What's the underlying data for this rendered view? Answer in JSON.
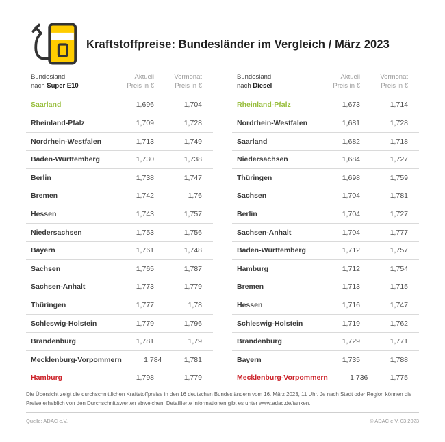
{
  "header": {
    "title": "Kraftstoffpreise: Bundesländer im Vergleich / März 2023",
    "icon": "fuel-pump-icon"
  },
  "columns": {
    "bundesland": "Bundesland",
    "nach_prefix": "nach ",
    "aktuell": "Aktuell",
    "vormonat": "Vormonat",
    "preis": "Preis in €"
  },
  "tables": [
    {
      "fuel": "Super E10",
      "rows": [
        {
          "name": "Saarland",
          "aktuell": "1,696",
          "vormonat": "1,704",
          "highlight": "green"
        },
        {
          "name": "Rheinland-Pfalz",
          "aktuell": "1,709",
          "vormonat": "1,728",
          "highlight": null
        },
        {
          "name": "Nordrhein-Westfalen",
          "aktuell": "1,713",
          "vormonat": "1,749",
          "highlight": null
        },
        {
          "name": "Baden-Württemberg",
          "aktuell": "1,730",
          "vormonat": "1,738",
          "highlight": null
        },
        {
          "name": "Berlin",
          "aktuell": "1,738",
          "vormonat": "1,747",
          "highlight": null
        },
        {
          "name": "Bremen",
          "aktuell": "1,742",
          "vormonat": "1,76",
          "highlight": null
        },
        {
          "name": "Hessen",
          "aktuell": "1,743",
          "vormonat": "1,757",
          "highlight": null
        },
        {
          "name": "Niedersachsen",
          "aktuell": "1,753",
          "vormonat": "1,756",
          "highlight": null
        },
        {
          "name": "Bayern",
          "aktuell": "1,761",
          "vormonat": "1,748",
          "highlight": null
        },
        {
          "name": "Sachsen",
          "aktuell": "1,765",
          "vormonat": "1,787",
          "highlight": null
        },
        {
          "name": "Sachsen-Anhalt",
          "aktuell": "1,773",
          "vormonat": "1,779",
          "highlight": null
        },
        {
          "name": "Thüringen",
          "aktuell": "1,777",
          "vormonat": "1,78",
          "highlight": null
        },
        {
          "name": "Schleswig-Holstein",
          "aktuell": "1,779",
          "vormonat": "1,796",
          "highlight": null
        },
        {
          "name": "Brandenburg",
          "aktuell": "1,781",
          "vormonat": "1,79",
          "highlight": null
        },
        {
          "name": "Mecklenburg-Vorpommern",
          "aktuell": "1,784",
          "vormonat": "1,781",
          "highlight": null
        },
        {
          "name": "Hamburg",
          "aktuell": "1,798",
          "vormonat": "1,779",
          "highlight": "red"
        }
      ]
    },
    {
      "fuel": "Diesel",
      "rows": [
        {
          "name": "Rheinland-Pfalz",
          "aktuell": "1,673",
          "vormonat": "1,714",
          "highlight": "green"
        },
        {
          "name": "Nordrhein-Westfalen",
          "aktuell": "1,681",
          "vormonat": "1,728",
          "highlight": null
        },
        {
          "name": "Saarland",
          "aktuell": "1,682",
          "vormonat": "1,718",
          "highlight": null
        },
        {
          "name": "Niedersachsen",
          "aktuell": "1,684",
          "vormonat": "1,727",
          "highlight": null
        },
        {
          "name": "Thüringen",
          "aktuell": "1,698",
          "vormonat": "1,759",
          "highlight": null
        },
        {
          "name": "Sachsen",
          "aktuell": "1,704",
          "vormonat": "1,781",
          "highlight": null
        },
        {
          "name": "Berlin",
          "aktuell": "1,704",
          "vormonat": "1,727",
          "highlight": null
        },
        {
          "name": "Sachsen-Anhalt",
          "aktuell": "1,704",
          "vormonat": "1,777",
          "highlight": null
        },
        {
          "name": "Baden-Württemberg",
          "aktuell": "1,712",
          "vormonat": "1,757",
          "highlight": null
        },
        {
          "name": "Hamburg",
          "aktuell": "1,712",
          "vormonat": "1,754",
          "highlight": null
        },
        {
          "name": "Bremen",
          "aktuell": "1,713",
          "vormonat": "1,715",
          "highlight": null
        },
        {
          "name": "Hessen",
          "aktuell": "1,716",
          "vormonat": "1,747",
          "highlight": null
        },
        {
          "name": "Schleswig-Holstein",
          "aktuell": "1,719",
          "vormonat": "1,762",
          "highlight": null
        },
        {
          "name": "Brandenburg",
          "aktuell": "1,729",
          "vormonat": "1,771",
          "highlight": null
        },
        {
          "name": "Bayern",
          "aktuell": "1,735",
          "vormonat": "1,788",
          "highlight": null
        },
        {
          "name": "Mecklenburg-Vorpommern",
          "aktuell": "1,736",
          "vormonat": "1,775",
          "highlight": "red"
        }
      ]
    }
  ],
  "footnote": {
    "text": "Die Übersicht zeigt die durchschnittlichen Kraftstoffpreise in den 16 deutschen Bundesländern vom 16. März 2023, 11 Uhr. Je nach Stadt oder Region können die Preise erheblich von den Durchschnittswerten abweichen. Detaillierte Informationen gibt es unter www.adac.de/tanken."
  },
  "footer": {
    "source": "Quelle: ADAC e.V.",
    "copyright": "© ADAC e.V. 03.2023"
  },
  "colors": {
    "accent_yellow": "#FFCC00",
    "cheapest_green": "#98BE3C",
    "most_expensive_red": "#CC2229"
  },
  "chart_data": [
    {
      "type": "table",
      "title": "Kraftstoffpreise Bundesländer im Vergleich März 2023 – Super E10",
      "columns": [
        "Bundesland nach Super E10",
        "Aktuell Preis in €",
        "Vormonat Preis in €"
      ],
      "rows": [
        [
          "Saarland",
          1.696,
          1.704
        ],
        [
          "Rheinland-Pfalz",
          1.709,
          1.728
        ],
        [
          "Nordrhein-Westfalen",
          1.713,
          1.749
        ],
        [
          "Baden-Württemberg",
          1.73,
          1.738
        ],
        [
          "Berlin",
          1.738,
          1.747
        ],
        [
          "Bremen",
          1.742,
          1.76
        ],
        [
          "Hessen",
          1.743,
          1.757
        ],
        [
          "Niedersachsen",
          1.753,
          1.756
        ],
        [
          "Bayern",
          1.761,
          1.748
        ],
        [
          "Sachsen",
          1.765,
          1.787
        ],
        [
          "Sachsen-Anhalt",
          1.773,
          1.779
        ],
        [
          "Thüringen",
          1.777,
          1.78
        ],
        [
          "Schleswig-Holstein",
          1.779,
          1.796
        ],
        [
          "Brandenburg",
          1.781,
          1.79
        ],
        [
          "Mecklenburg-Vorpommern",
          1.784,
          1.781
        ],
        [
          "Hamburg",
          1.798,
          1.779
        ]
      ]
    },
    {
      "type": "table",
      "title": "Kraftstoffpreise Bundesländer im Vergleich März 2023 – Diesel",
      "columns": [
        "Bundesland nach Diesel",
        "Aktuell Preis in €",
        "Vormonat Preis in €"
      ],
      "rows": [
        [
          "Rheinland-Pfalz",
          1.673,
          1.714
        ],
        [
          "Nordrhein-Westfalen",
          1.681,
          1.728
        ],
        [
          "Saarland",
          1.682,
          1.718
        ],
        [
          "Niedersachsen",
          1.684,
          1.727
        ],
        [
          "Thüringen",
          1.698,
          1.759
        ],
        [
          "Sachsen",
          1.704,
          1.781
        ],
        [
          "Berlin",
          1.704,
          1.727
        ],
        [
          "Sachsen-Anhalt",
          1.704,
          1.777
        ],
        [
          "Baden-Württemberg",
          1.712,
          1.757
        ],
        [
          "Hamburg",
          1.712,
          1.754
        ],
        [
          "Bremen",
          1.713,
          1.715
        ],
        [
          "Hessen",
          1.716,
          1.747
        ],
        [
          "Schleswig-Holstein",
          1.719,
          1.762
        ],
        [
          "Brandenburg",
          1.729,
          1.771
        ],
        [
          "Bayern",
          1.735,
          1.788
        ],
        [
          "Mecklenburg-Vorpommern",
          1.736,
          1.775
        ]
      ]
    }
  ]
}
